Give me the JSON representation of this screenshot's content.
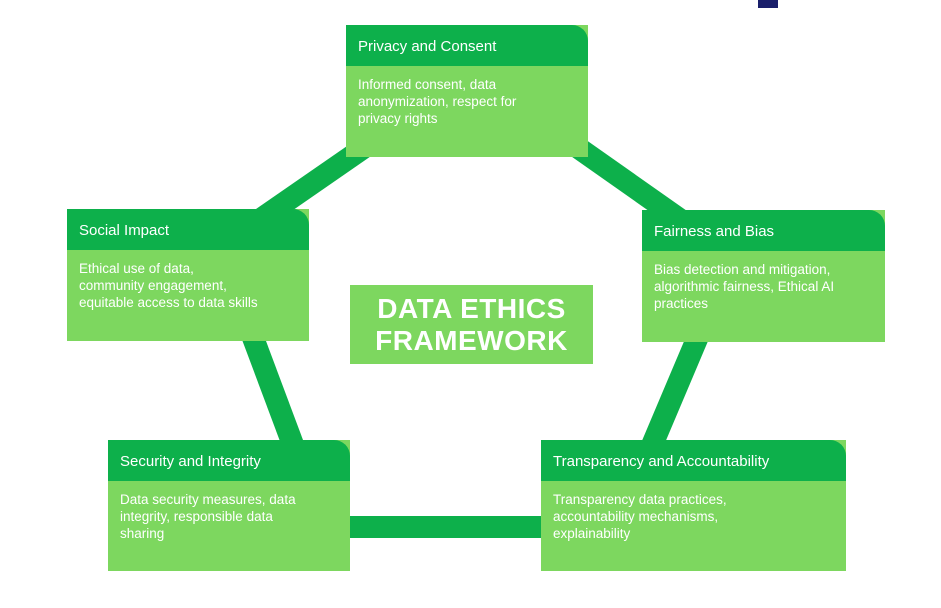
{
  "colors": {
    "header": "#0db04b",
    "body": "#7dd75f",
    "connector": "#0db04b",
    "text": "#ffffff",
    "corner_mark": "#1a1f6b"
  },
  "center": {
    "line1": "DATA ETHICS",
    "line2": "FRAMEWORK"
  },
  "nodes": [
    {
      "id": "privacy",
      "title": "Privacy and Consent",
      "lines": [
        "Informed consent, data",
        "anonymization, respect for",
        "privacy rights"
      ]
    },
    {
      "id": "fairness",
      "title": "Fairness and Bias",
      "lines": [
        "Bias detection and mitigation,",
        "algorithmic fairness, Ethical AI",
        "practices"
      ]
    },
    {
      "id": "transparency",
      "title": "Transparency and Accountability",
      "lines": [
        "Transparency data practices,",
        "accountability mechanisms,",
        "explainability"
      ]
    },
    {
      "id": "security",
      "title": "Security and Integrity",
      "lines": [
        "Data security measures, data",
        "integrity, responsible data",
        "sharing"
      ]
    },
    {
      "id": "social",
      "title": "Social Impact",
      "lines": [
        "Ethical use of data,",
        "community engagement,",
        "equitable access to data skills"
      ]
    }
  ]
}
